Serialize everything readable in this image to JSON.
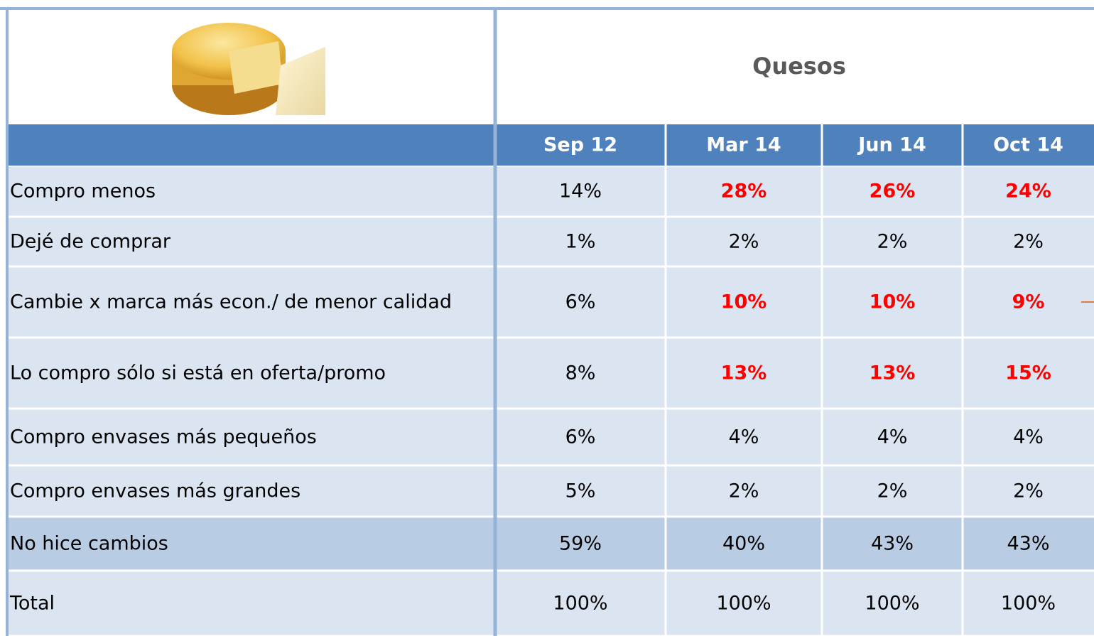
{
  "table": {
    "title": "Quesos",
    "columns": [
      "Sep 12",
      "Mar 14",
      "Jun 14",
      "Oct 14"
    ],
    "rows": [
      {
        "label": "Compro menos",
        "cells": [
          "14%",
          "28%",
          "26%",
          "24%"
        ],
        "emphasis": [
          false,
          true,
          true,
          true
        ]
      },
      {
        "label": "Dejé de comprar",
        "cells": [
          "1%",
          "2%",
          "2%",
          "2%"
        ]
      },
      {
        "label": "Cambie x marca más econ./ de menor calidad",
        "cells": [
          "6%",
          "10%",
          "10%",
          "9%"
        ],
        "emphasis": [
          false,
          true,
          true,
          true
        ]
      },
      {
        "label": "Lo compro sólo si está en oferta/promo",
        "cells": [
          "8%",
          "13%",
          "13%",
          "15%"
        ],
        "emphasis": [
          false,
          true,
          true,
          true
        ]
      },
      {
        "label": "Compro envases más pequeños",
        "cells": [
          "6%",
          "4%",
          "4%",
          "4%"
        ]
      },
      {
        "label": "Compro envases más grandes",
        "cells": [
          "5%",
          "2%",
          "2%",
          "2%"
        ]
      },
      {
        "label": "No hice cambios",
        "cells": [
          "59%",
          "40%",
          "43%",
          "43%"
        ],
        "shaded": true
      },
      {
        "label": "Total",
        "cells": [
          "100%",
          "100%",
          "100%",
          "100%"
        ]
      }
    ],
    "emphasis_color": "#ff0000"
  }
}
